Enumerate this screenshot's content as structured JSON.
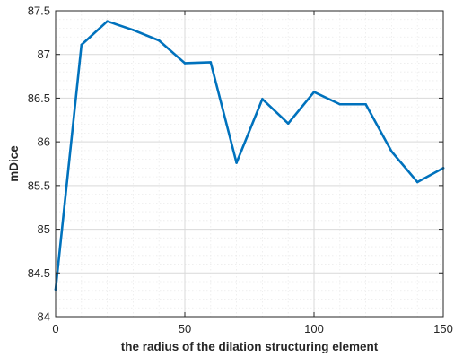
{
  "chart_data": {
    "type": "line",
    "title": "",
    "xlabel": "the radius of the dilation structuring element",
    "ylabel": "mDice",
    "xlim": [
      0,
      150
    ],
    "ylim": [
      84,
      87.5
    ],
    "xticks": [
      0,
      50,
      100,
      150
    ],
    "yticks": [
      84,
      84.5,
      85,
      85.5,
      86,
      86.5,
      87,
      87.5
    ],
    "xtick_labels": [
      "0",
      "50",
      "100",
      "150"
    ],
    "ytick_labels": [
      "84",
      "84.5",
      "85",
      "85.5",
      "86",
      "86.5",
      "87",
      "87.5"
    ],
    "grid": true,
    "minor_grid": true,
    "series": [
      {
        "color": "#0072BD",
        "x": [
          0,
          10,
          20,
          30,
          40,
          50,
          60,
          70,
          80,
          90,
          100,
          110,
          120,
          130,
          140,
          150
        ],
        "values": [
          84.31,
          87.11,
          87.38,
          87.28,
          87.16,
          86.9,
          86.91,
          85.76,
          86.49,
          86.21,
          86.57,
          86.43,
          86.43,
          85.89,
          85.54,
          85.7
        ]
      }
    ]
  }
}
